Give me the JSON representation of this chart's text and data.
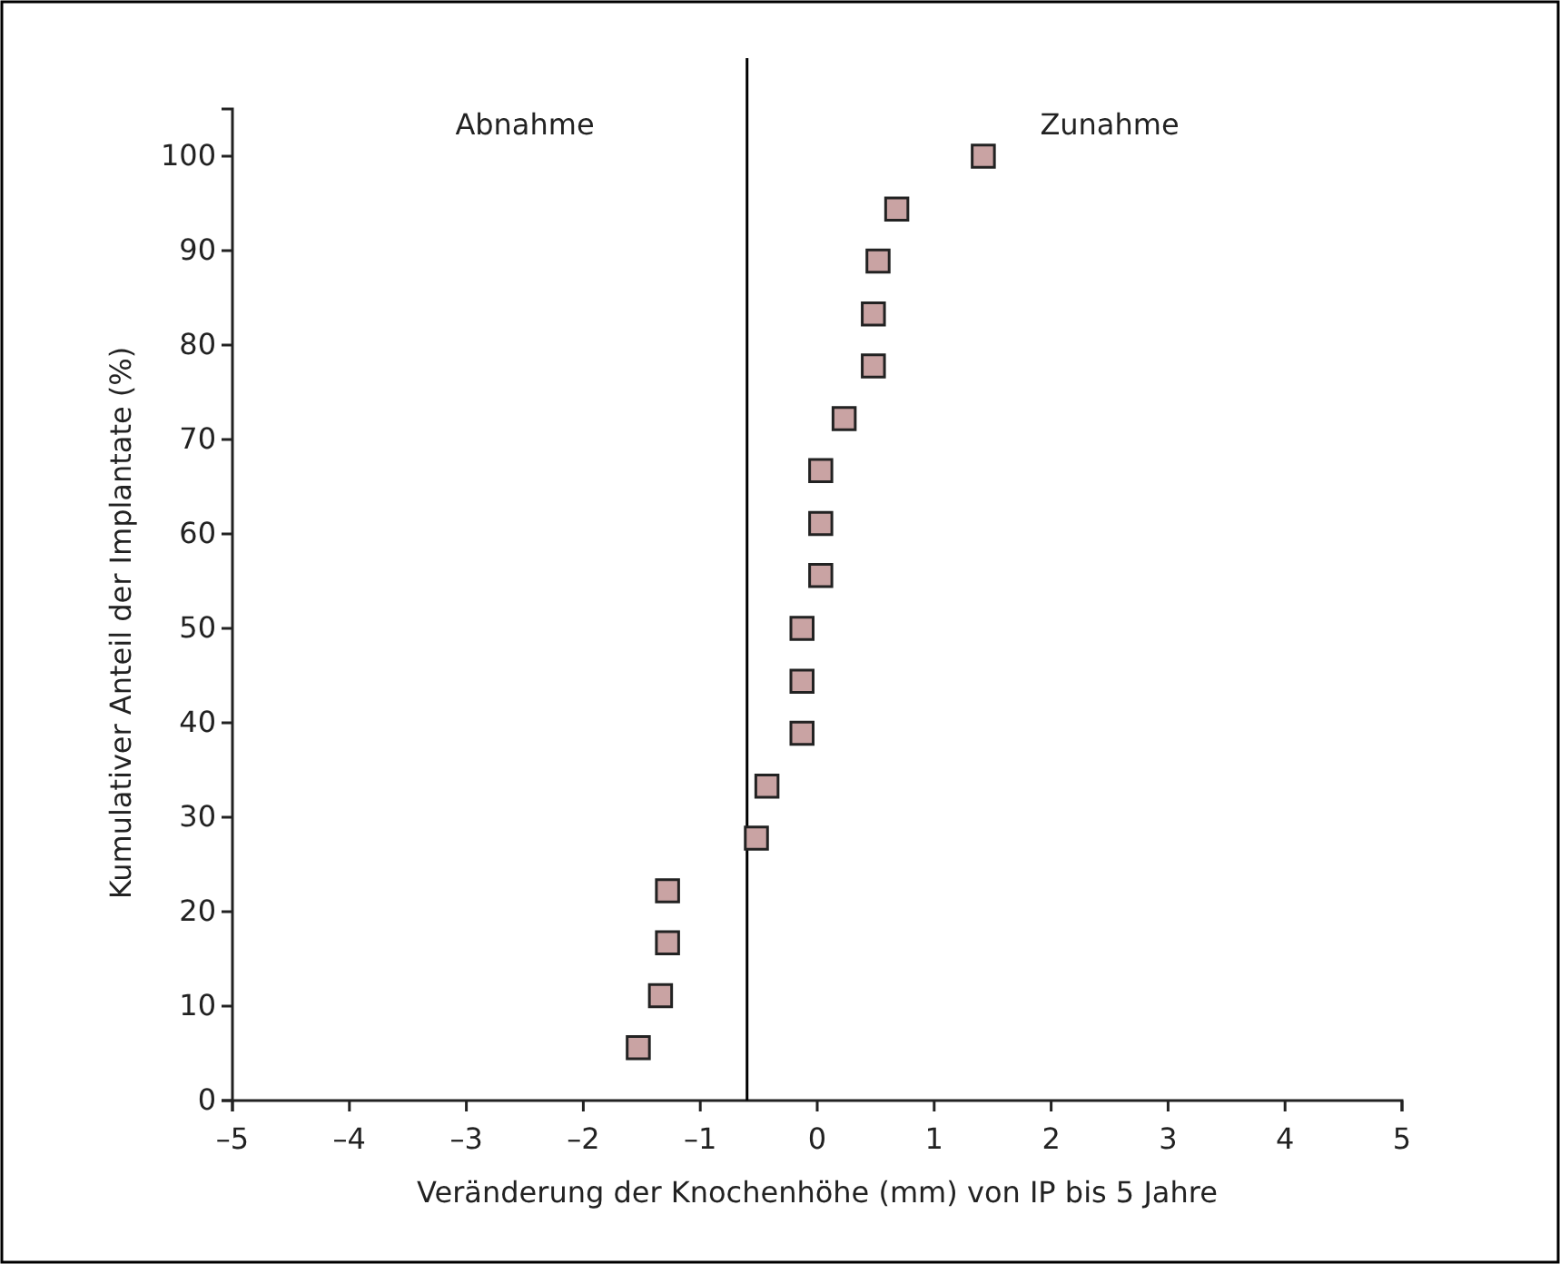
{
  "chart_data": {
    "type": "scatter",
    "xlabel": "Veränderung der Knochenhöhe (mm) von IP bis 5 Jahre",
    "ylabel": "Kumulativer Anteil der Implantate (%)",
    "x": [
      -1.53,
      -1.34,
      -1.28,
      -1.28,
      -0.52,
      -0.43,
      -0.13,
      -0.13,
      -0.13,
      0.03,
      0.03,
      0.03,
      0.23,
      0.48,
      0.48,
      0.52,
      0.68,
      1.42
    ],
    "values": [
      5.6,
      11.1,
      16.7,
      22.2,
      27.8,
      33.3,
      38.9,
      44.4,
      50,
      55.6,
      61.1,
      66.7,
      72.2,
      77.8,
      83.3,
      88.9,
      94.4,
      100
    ],
    "color": "#c9a3a3",
    "marker": "square",
    "xlim": [
      -5,
      5
    ],
    "xticks": [
      {
        "value": -5,
        "label": "–5"
      },
      {
        "value": -4,
        "label": "–4"
      },
      {
        "value": -3,
        "label": "–3"
      },
      {
        "value": -2,
        "label": "–2"
      },
      {
        "value": -1,
        "label": "–1"
      },
      0,
      1,
      2,
      3,
      4,
      5
    ],
    "ylim": [
      0,
      105
    ],
    "yticks": [
      0,
      10,
      20,
      30,
      40,
      50,
      60,
      70,
      80,
      90,
      100
    ],
    "ref_lines": [
      {
        "axis": "x",
        "value": -0.6,
        "color": "#000000"
      }
    ],
    "annotations": [
      "Abnahme",
      "Zunahme"
    ]
  }
}
